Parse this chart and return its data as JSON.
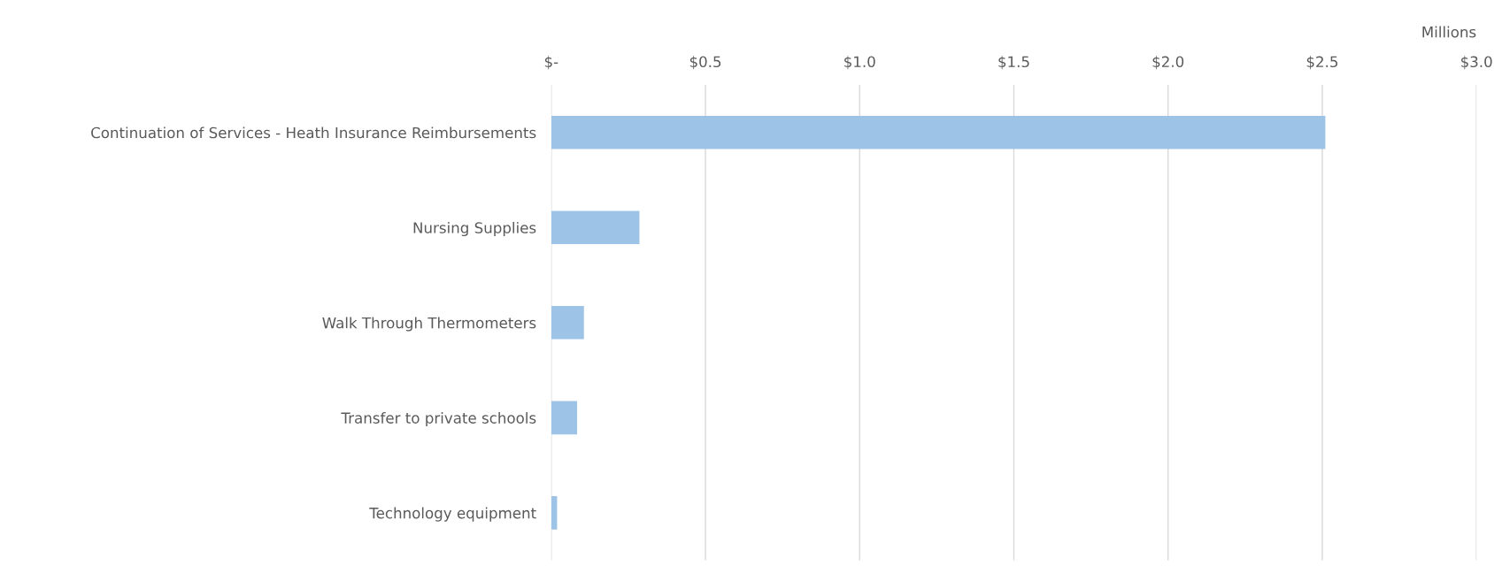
{
  "chart_data": {
    "type": "bar",
    "orientation": "horizontal",
    "xlabel": "Millions",
    "categories": [
      "Continuation of Services - Heath Insurance Reimbursements",
      "Nursing Supplies",
      "Walk Through Thermometers",
      "Transfer to private schools",
      "Technology equipment"
    ],
    "values": [
      2.51,
      0.286,
      0.106,
      0.084,
      0.019
    ],
    "color": "#9dc3e6",
    "xlim": [
      0,
      3.0
    ],
    "xticks": [
      {
        "value": 0,
        "label": "$-"
      },
      {
        "value": 0.5,
        "label": "$0.5"
      },
      {
        "value": 1.0,
        "label": "$1.0"
      },
      {
        "value": 1.5,
        "label": "$1.5"
      },
      {
        "value": 2.0,
        "label": "$2.0"
      },
      {
        "value": 2.5,
        "label": "$2.5"
      },
      {
        "value": 3.0,
        "label": "$3.0"
      }
    ],
    "grid": "x"
  }
}
